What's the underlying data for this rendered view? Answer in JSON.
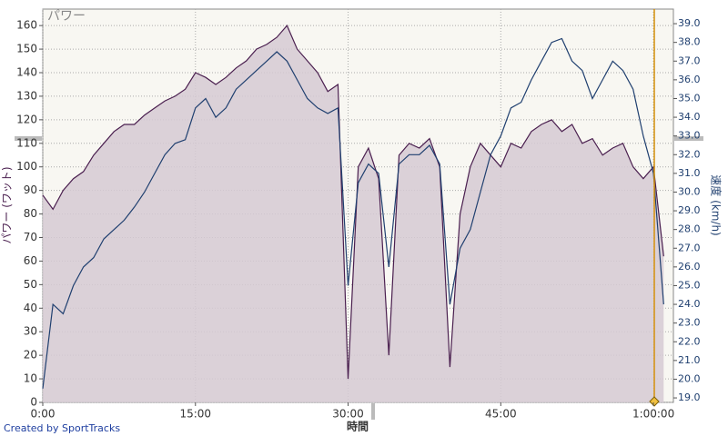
{
  "chart_data": {
    "type": "line",
    "title": "パワー",
    "xlabel": "時間",
    "ylabel": "パワー (ワット)",
    "y2label": "速度 (km/h)",
    "credit": "Created by SportTracks",
    "x": [
      0,
      1,
      2,
      3,
      4,
      5,
      6,
      7,
      8,
      9,
      10,
      11,
      12,
      13,
      14,
      15,
      16,
      17,
      18,
      19,
      20,
      21,
      22,
      23,
      24,
      25,
      26,
      27,
      28,
      29,
      30,
      31,
      32,
      33,
      34,
      35,
      36,
      37,
      38,
      39,
      40,
      41,
      42,
      43,
      44,
      45,
      46,
      47,
      48,
      49,
      50,
      51,
      52,
      53,
      54,
      55,
      56,
      57,
      58,
      59,
      60,
      61
    ],
    "xlim": [
      0,
      61.96
    ],
    "xticks": [
      {
        "value": 0,
        "label": "0:00"
      },
      {
        "value": 15,
        "label": "15:00"
      },
      {
        "value": 30,
        "label": "30:00"
      },
      {
        "value": 45,
        "label": "45:00"
      },
      {
        "value": 60,
        "label": "1:00:00"
      }
    ],
    "ylim": [
      0,
      167
    ],
    "yticks": [
      0,
      10,
      20,
      30,
      40,
      50,
      60,
      70,
      80,
      90,
      100,
      110,
      120,
      130,
      140,
      150,
      160
    ],
    "y2lim": [
      18.76,
      39.78
    ],
    "y2ticks": [
      {
        "value": 19,
        "label": "19.0"
      },
      {
        "value": 20,
        "label": "20.0"
      },
      {
        "value": 21,
        "label": "21.0"
      },
      {
        "value": 22,
        "label": "22.0"
      },
      {
        "value": 23,
        "label": "23.0"
      },
      {
        "value": 24,
        "label": "24.0"
      },
      {
        "value": 25,
        "label": "25.0"
      },
      {
        "value": 26,
        "label": "26.0"
      },
      {
        "value": 27,
        "label": "27.0"
      },
      {
        "value": 28,
        "label": "28.0"
      },
      {
        "value": 29,
        "label": "29.0"
      },
      {
        "value": 30,
        "label": "30.0"
      },
      {
        "value": 31,
        "label": "31.0"
      },
      {
        "value": 32,
        "label": "32.0"
      },
      {
        "value": 33,
        "label": "33.0"
      },
      {
        "value": 34,
        "label": "34.0"
      },
      {
        "value": 35,
        "label": "35.0"
      },
      {
        "value": 36,
        "label": "36.0"
      },
      {
        "value": 37,
        "label": "37.0"
      },
      {
        "value": 38,
        "label": "38.0"
      },
      {
        "value": 39,
        "label": "39.0"
      }
    ],
    "grid": true,
    "series": [
      {
        "color": "#4a1f4f",
        "fill": "#d6cad4",
        "values": [
          88,
          82,
          90,
          95,
          98,
          105,
          110,
          115,
          118,
          118,
          122,
          125,
          128,
          130,
          133,
          140,
          138,
          135,
          138,
          142,
          145,
          150,
          152,
          155,
          160,
          150,
          145,
          140,
          132,
          135,
          10,
          100,
          108,
          95,
          20,
          105,
          110,
          108,
          112,
          100,
          15,
          80,
          100,
          110,
          105,
          100,
          110,
          108,
          115,
          118,
          120,
          115,
          118,
          110,
          112,
          105,
          108,
          110,
          100,
          95,
          100,
          62
        ]
      },
      {
        "color": "#1f3f6f",
        "axis": "y2",
        "values": [
          19.5,
          24,
          23.5,
          25,
          26,
          26.5,
          27.5,
          28,
          28.5,
          29.2,
          30,
          31,
          32,
          32.6,
          32.8,
          34.5,
          35,
          34,
          34.5,
          35.5,
          36,
          36.5,
          37,
          37.5,
          37,
          36,
          35,
          34.5,
          34.2,
          34.5,
          25,
          30.5,
          31.5,
          31,
          26,
          31.5,
          32,
          32,
          32.5,
          31.5,
          24,
          27,
          28,
          30,
          32,
          33,
          34.5,
          34.8,
          36,
          37,
          38,
          38.2,
          37,
          36.5,
          35,
          36,
          37,
          36.5,
          35.5,
          33,
          31,
          24
        ]
      }
    ]
  }
}
